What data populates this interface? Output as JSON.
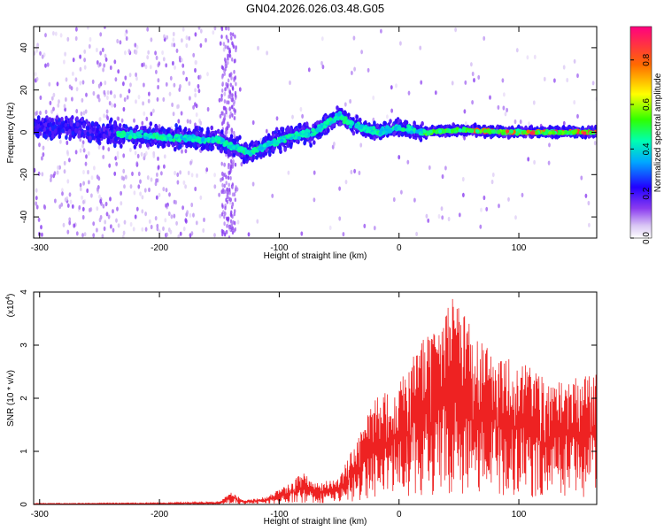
{
  "title": "GN04.2026.026.03.48.G05",
  "chart_data": [
    {
      "type": "heatmap",
      "xlabel": "Height of straight line (km)",
      "ylabel": "Frequency (Hz)",
      "xlim": [
        -305,
        165
      ],
      "ylim": [
        -50,
        50
      ],
      "xticks": [
        -300,
        -200,
        -100,
        0,
        100
      ],
      "yticks": [
        -40,
        -20,
        0,
        20,
        40
      ],
      "colorbar": {
        "label": "Normalized spectral amplitude",
        "range": [
          0,
          0.95
        ],
        "ticks": [
          0.0,
          0.2,
          0.4,
          0.6,
          0.8
        ]
      },
      "ridge": [
        {
          "x": -300,
          "y": 2
        },
        {
          "x": -280,
          "y": 3
        },
        {
          "x": -250,
          "y": 0
        },
        {
          "x": -200,
          "y": -2
        },
        {
          "x": -150,
          "y": -4
        },
        {
          "x": -125,
          "y": -10
        },
        {
          "x": -110,
          "y": -6
        },
        {
          "x": -90,
          "y": -2
        },
        {
          "x": -70,
          "y": 0
        },
        {
          "x": -50,
          "y": 8
        },
        {
          "x": -40,
          "y": 4
        },
        {
          "x": -20,
          "y": 0
        },
        {
          "x": 0,
          "y": 2
        },
        {
          "x": 20,
          "y": 0
        },
        {
          "x": 50,
          "y": 1
        },
        {
          "x": 100,
          "y": 0
        },
        {
          "x": 165,
          "y": 0
        }
      ]
    },
    {
      "type": "line",
      "xlabel": "Height of straight line (km)",
      "ylabel": "SNR (10 * v/v)",
      "multiplier": "(x10",
      "multiplier_exp": "4",
      "multiplier_close": ")",
      "xlim": [
        -305,
        165
      ],
      "ylim": [
        0,
        4
      ],
      "xticks": [
        -300,
        -200,
        -100,
        0,
        100
      ],
      "yticks": [
        0,
        1,
        2,
        3,
        4
      ],
      "color": "#ee2222",
      "envelope": [
        {
          "x": -305,
          "y": 0.02
        },
        {
          "x": -200,
          "y": 0.03
        },
        {
          "x": -150,
          "y": 0.05
        },
        {
          "x": -140,
          "y": 0.25
        },
        {
          "x": -130,
          "y": 0.08
        },
        {
          "x": -110,
          "y": 0.15
        },
        {
          "x": -95,
          "y": 0.35
        },
        {
          "x": -80,
          "y": 0.6
        },
        {
          "x": -70,
          "y": 0.4
        },
        {
          "x": -50,
          "y": 0.5
        },
        {
          "x": -30,
          "y": 1.5
        },
        {
          "x": -20,
          "y": 2.0
        },
        {
          "x": 0,
          "y": 2.3
        },
        {
          "x": 20,
          "y": 3.1
        },
        {
          "x": 45,
          "y": 4.0
        },
        {
          "x": 70,
          "y": 3.0
        },
        {
          "x": 100,
          "y": 2.7
        },
        {
          "x": 130,
          "y": 2.3
        },
        {
          "x": 165,
          "y": 2.5
        }
      ]
    }
  ]
}
